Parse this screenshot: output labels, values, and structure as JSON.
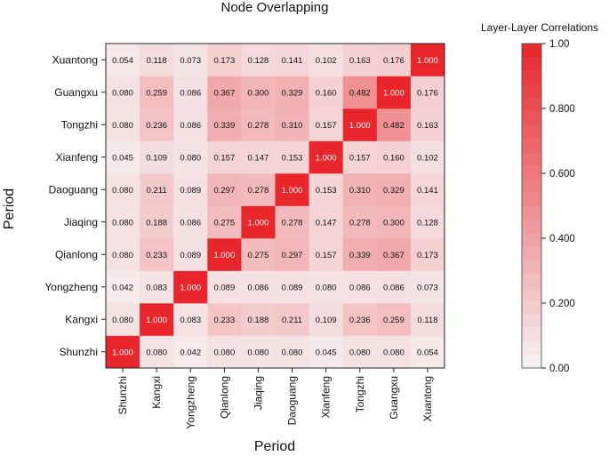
{
  "chart_data": {
    "type": "heatmap",
    "title": "Node Overlapping",
    "xlabel": "Period",
    "ylabel": "Period",
    "categories": [
      "Shunzhi",
      "Kangxi",
      "Yongzheng",
      "Qianlong",
      "Jiaqing",
      "Daoguang",
      "Xianfeng",
      "Tongzhi",
      "Guangxu",
      "Xuantong"
    ],
    "values": [
      [
        "1.000",
        "0.080",
        "0.042",
        "0.080",
        "0.080",
        "0.080",
        "0.045",
        "0.080",
        "0.080",
        "0.054"
      ],
      [
        "0.080",
        "1.000",
        "0.083",
        "0.233",
        "0.188",
        "0.211",
        "0.109",
        "0.236",
        "0.259",
        "0.118"
      ],
      [
        "0.042",
        "0.083",
        "1.000",
        "0.089",
        "0.086",
        "0.089",
        "0.080",
        "0.086",
        "0.086",
        "0.073"
      ],
      [
        "0.080",
        "0.233",
        "0.089",
        "1.000",
        "0.275",
        "0.297",
        "0.157",
        "0.339",
        "0.367",
        "0.173"
      ],
      [
        "0.080",
        "0.188",
        "0.086",
        "0.275",
        "1.000",
        "0.278",
        "0.147",
        "0.278",
        "0.300",
        "0.128"
      ],
      [
        "0.080",
        "0.211",
        "0.089",
        "0.297",
        "0.278",
        "1.000",
        "0.153",
        "0.310",
        "0.329",
        "0.141"
      ],
      [
        "0.045",
        "0.109",
        "0.080",
        "0.157",
        "0.147",
        "0.153",
        "1.000",
        "0.157",
        "0.160",
        "0.102"
      ],
      [
        "0.080",
        "0.236",
        "0.086",
        "0.339",
        "0.278",
        "0.310",
        "0.157",
        "1.000",
        "0.482",
        "0.163"
      ],
      [
        "0.080",
        "0.259",
        "0.086",
        "0.367",
        "0.300",
        "0.329",
        "0.160",
        "0.482",
        "1.000",
        "0.176"
      ],
      [
        "0.054",
        "0.118",
        "0.073",
        "0.173",
        "0.128",
        "0.141",
        "0.102",
        "0.163",
        "0.176",
        "1.000"
      ]
    ],
    "colorbar": {
      "title": "Layer-Layer Correlations",
      "range": [
        0,
        1
      ],
      "ticks": [
        "0.00",
        "0.200",
        "0.400",
        "0.600",
        "0.800",
        "1.00"
      ],
      "color_low": "#f6f3f4",
      "color_high": "#e8262b"
    }
  }
}
